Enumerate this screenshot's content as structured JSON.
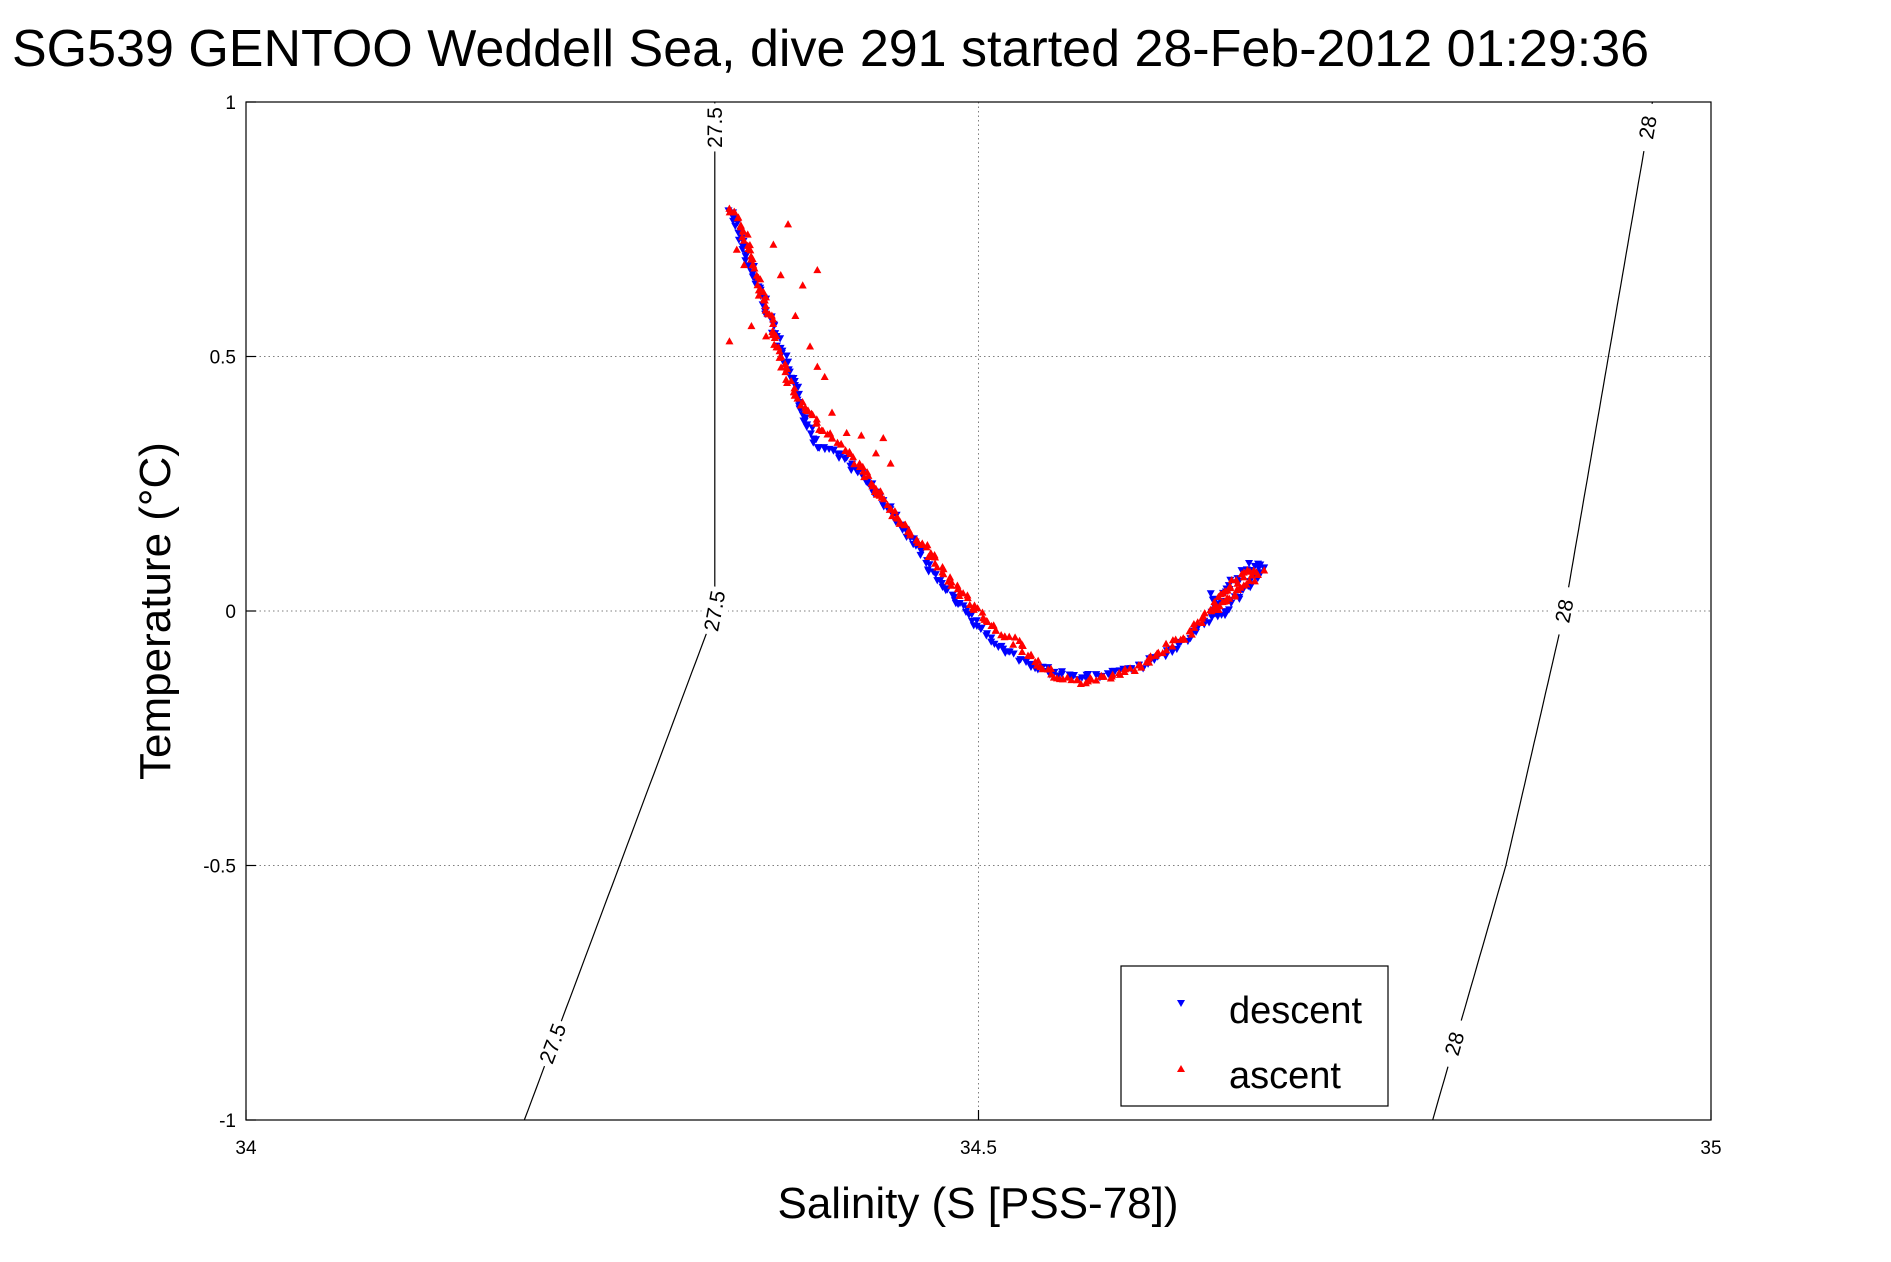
{
  "chart_data": {
    "type": "scatter",
    "title": "SG539 GENTOO Weddell Sea, dive 291 started 28-Feb-2012 01:29:36",
    "xlabel": "Salinity (S [PSS-78])",
    "ylabel": "Temperature (°C)",
    "xlim": [
      34,
      35
    ],
    "ylim": [
      -1,
      1
    ],
    "x_ticks": [
      34,
      34.5,
      35
    ],
    "x_tick_labels": [
      "34",
      "34.5",
      "35"
    ],
    "y_ticks": [
      -1,
      -0.5,
      0,
      0.5,
      1
    ],
    "y_tick_labels": [
      "-1",
      "-0.5",
      "0",
      "0.5",
      "1"
    ],
    "grid": true,
    "legend_position": "bottom-right",
    "colors": {
      "descent": "#0000ff",
      "ascent": "#ff0000",
      "contour": "#000000",
      "grid": "#7f7f7f"
    },
    "density_contours": [
      {
        "level": 27.5,
        "label": "27.5",
        "points": [
          [
            34.19,
            -1.0
          ],
          [
            34.32,
            0.0
          ],
          [
            34.32,
            1.0
          ]
        ]
      },
      {
        "level": 28,
        "label": "28",
        "points": [
          [
            34.81,
            -1.0
          ],
          [
            34.86,
            -0.5
          ],
          [
            34.9,
            0.0
          ],
          [
            34.93,
            0.5
          ],
          [
            34.96,
            1.0
          ]
        ]
      }
    ],
    "series": [
      {
        "name": "descent",
        "marker": "triangle-down",
        "path": [
          [
            34.33,
            0.79
          ],
          [
            34.39,
            0.32
          ],
          [
            34.4,
            0.315
          ],
          [
            34.42,
            0.27
          ],
          [
            34.44,
            0.2
          ],
          [
            34.455,
            0.14
          ],
          [
            34.47,
            0.07
          ],
          [
            34.485,
            0.02
          ],
          [
            34.5,
            -0.03
          ],
          [
            34.515,
            -0.07
          ],
          [
            34.53,
            -0.1
          ],
          [
            34.55,
            -0.12
          ],
          [
            34.57,
            -0.13
          ],
          [
            34.59,
            -0.125
          ],
          [
            34.61,
            -0.11
          ],
          [
            34.63,
            -0.08
          ],
          [
            34.645,
            -0.05
          ],
          [
            34.66,
            -0.01
          ],
          [
            34.665,
            0.02
          ],
          [
            34.675,
            0.06
          ],
          [
            34.685,
            0.09
          ],
          [
            34.695,
            0.088
          ],
          [
            34.69,
            0.07
          ],
          [
            34.665,
            -0.01
          ],
          [
            34.66,
            0.03
          ]
        ]
      },
      {
        "name": "ascent",
        "marker": "triangle-up",
        "path": [
          [
            34.33,
            0.79
          ],
          [
            34.335,
            0.78
          ],
          [
            34.34,
            0.74
          ],
          [
            34.345,
            0.7
          ],
          [
            34.35,
            0.65
          ],
          [
            34.355,
            0.6
          ],
          [
            34.36,
            0.55
          ],
          [
            34.365,
            0.5
          ],
          [
            34.37,
            0.46
          ],
          [
            34.375,
            0.43
          ],
          [
            34.38,
            0.41
          ],
          [
            34.39,
            0.37
          ],
          [
            34.4,
            0.34
          ],
          [
            34.42,
            0.28
          ],
          [
            34.44,
            0.2
          ],
          [
            34.455,
            0.15
          ],
          [
            34.465,
            0.12
          ],
          [
            34.48,
            0.06
          ],
          [
            34.49,
            0.03
          ],
          [
            34.5,
            0.0
          ],
          [
            34.51,
            -0.03
          ],
          [
            34.525,
            -0.06
          ],
          [
            34.54,
            -0.1
          ],
          [
            34.555,
            -0.13
          ],
          [
            34.57,
            -0.14
          ],
          [
            34.585,
            -0.13
          ],
          [
            34.6,
            -0.12
          ],
          [
            34.615,
            -0.1
          ],
          [
            34.63,
            -0.07
          ],
          [
            34.645,
            -0.04
          ],
          [
            34.655,
            -0.01
          ],
          [
            34.665,
            0.03
          ],
          [
            34.675,
            0.06
          ],
          [
            34.685,
            0.08
          ],
          [
            34.69,
            0.07
          ],
          [
            34.68,
            0.05
          ],
          [
            34.67,
            0.02
          ],
          [
            34.66,
            0.0
          ]
        ],
        "scatter": [
          [
            34.335,
            0.71
          ],
          [
            34.34,
            0.68
          ],
          [
            34.35,
            0.62
          ],
          [
            34.345,
            0.56
          ],
          [
            34.36,
            0.72
          ],
          [
            34.37,
            0.76
          ],
          [
            34.365,
            0.66
          ],
          [
            34.38,
            0.64
          ],
          [
            34.385,
            0.52
          ],
          [
            34.39,
            0.48
          ],
          [
            34.395,
            0.46
          ],
          [
            34.375,
            0.58
          ],
          [
            34.355,
            0.54
          ],
          [
            34.33,
            0.53
          ],
          [
            34.39,
            0.67
          ],
          [
            34.4,
            0.39
          ],
          [
            34.41,
            0.35
          ],
          [
            34.42,
            0.345
          ],
          [
            34.43,
            0.31
          ],
          [
            34.435,
            0.34
          ],
          [
            34.44,
            0.29
          ],
          [
            34.43,
            0.24
          ],
          [
            34.45,
            0.17
          ],
          [
            34.47,
            0.11
          ],
          [
            34.695,
            0.08
          ]
        ]
      }
    ],
    "legend": [
      {
        "label": "descent",
        "marker": "triangle-down",
        "color": "#0000ff"
      },
      {
        "label": "ascent",
        "marker": "triangle-up",
        "color": "#ff0000"
      }
    ]
  }
}
